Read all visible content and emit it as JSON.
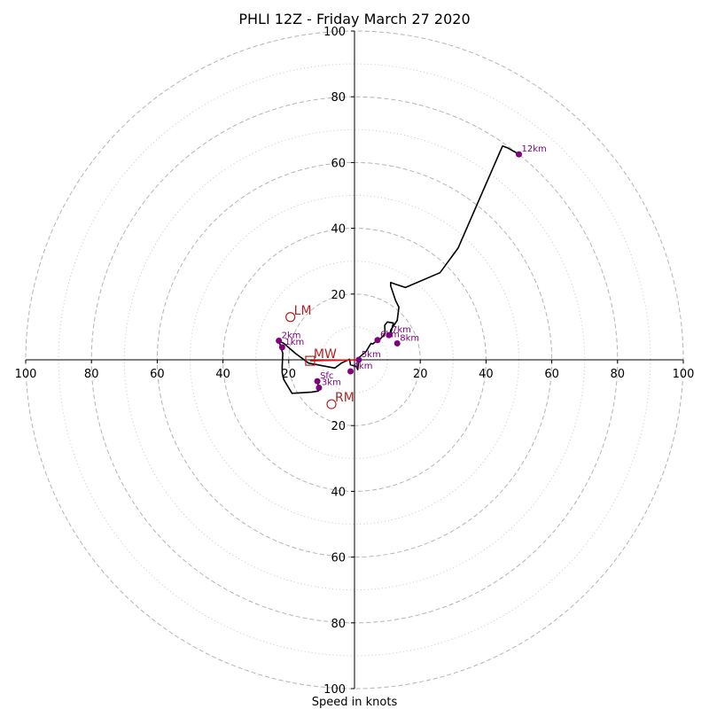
{
  "chart_data": {
    "type": "scatter",
    "title": "PHLI 12Z - Friday March 27 2020",
    "xlabel": "Speed in knots",
    "ylabel": "",
    "xlim": [
      -100,
      100
    ],
    "ylim": [
      -100,
      100
    ],
    "grid": true,
    "rings_major": [
      20,
      40,
      60,
      80,
      100
    ],
    "rings_minor": [
      10,
      30,
      50,
      70,
      90
    ],
    "x_tick_labels": [
      {
        "value": -100,
        "label": "100"
      },
      {
        "value": -80,
        "label": "80"
      },
      {
        "value": -60,
        "label": "60"
      },
      {
        "value": -40,
        "label": "40"
      },
      {
        "value": -20,
        "label": "20"
      },
      {
        "value": 20,
        "label": "20"
      },
      {
        "value": 40,
        "label": "40"
      },
      {
        "value": 60,
        "label": "60"
      },
      {
        "value": 80,
        "label": "80"
      },
      {
        "value": 100,
        "label": "100"
      }
    ],
    "y_tick_labels": [
      {
        "value": 100,
        "label": "100"
      },
      {
        "value": 80,
        "label": "80"
      },
      {
        "value": 60,
        "label": "60"
      },
      {
        "value": 40,
        "label": "40"
      },
      {
        "value": 20,
        "label": "20"
      },
      {
        "value": -20,
        "label": "20"
      },
      {
        "value": -40,
        "label": "40"
      },
      {
        "value": -60,
        "label": "60"
      },
      {
        "value": -80,
        "label": "80"
      },
      {
        "value": -100,
        "label": "100"
      }
    ],
    "hodograph": {
      "color": "#000000",
      "points": [
        [
          -11.3,
          -6.5
        ],
        [
          -11.2,
          -7.0
        ],
        [
          -10.8,
          -8.5
        ],
        [
          -11.0,
          -9.5
        ],
        [
          -13.0,
          -9.8
        ],
        [
          -19.0,
          -10.2
        ],
        [
          -21.5,
          -6.0
        ],
        [
          -22.0,
          -4.0
        ],
        [
          -22.0,
          -2.0
        ],
        [
          -21.8,
          2.0
        ],
        [
          -23.0,
          5.8
        ],
        [
          -21.5,
          5.0
        ],
        [
          -18.0,
          2.0
        ],
        [
          -14.0,
          -1.0
        ],
        [
          -6.0,
          -2.5
        ],
        [
          -4.0,
          -1.0
        ],
        [
          -1.5,
          0.2
        ],
        [
          -1.2,
          -1.5
        ],
        [
          0.5,
          -2.0
        ],
        [
          1.0,
          -3.0
        ],
        [
          1.3,
          0.0
        ],
        [
          1.5,
          0.8
        ],
        [
          3.5,
          2.5
        ],
        [
          5.0,
          5.0
        ],
        [
          5.5,
          4.8
        ],
        [
          7.0,
          6.0
        ],
        [
          8.0,
          6.5
        ],
        [
          9.3,
          8.0
        ],
        [
          9.2,
          10.5
        ],
        [
          10.0,
          11.5
        ],
        [
          11.8,
          11.2
        ],
        [
          11.5,
          10.0
        ],
        [
          10.8,
          7.2
        ],
        [
          11.0,
          9.0
        ],
        [
          13.0,
          12.0
        ],
        [
          13.5,
          16.0
        ],
        [
          12.5,
          18.0
        ],
        [
          11.0,
          22.5
        ],
        [
          11.0,
          23.5
        ],
        [
          12.5,
          23.0
        ],
        [
          15.5,
          22.0
        ],
        [
          26.0,
          26.5
        ],
        [
          31.5,
          34.0
        ],
        [
          45.0,
          65.0
        ],
        [
          46.5,
          64.5
        ],
        [
          50.0,
          62.5
        ]
      ]
    },
    "height_markers": {
      "color": "#800080",
      "points": [
        {
          "label": "Sfc",
          "x": -11.3,
          "y": -6.5
        },
        {
          "label": "1km",
          "x": -22.0,
          "y": 3.8
        },
        {
          "label": "2km",
          "x": -23.0,
          "y": 5.8
        },
        {
          "label": "3km",
          "x": -10.8,
          "y": -8.5
        },
        {
          "label": "4km",
          "x": -1.2,
          "y": -3.5
        },
        {
          "label": "5km",
          "x": 1.3,
          "y": 0.0
        },
        {
          "label": "6km",
          "x": 7.0,
          "y": 6.0
        },
        {
          "label": "7km",
          "x": 10.5,
          "y": 7.5
        },
        {
          "label": "8km",
          "x": 13.0,
          "y": 5.0
        },
        {
          "label": "12km",
          "x": 50.0,
          "y": 62.5
        }
      ]
    },
    "storm_motion": {
      "color": "#b22222",
      "points": [
        {
          "label": "LM",
          "x": -19.5,
          "y": 13.0,
          "marker": "circle"
        },
        {
          "label": "RM",
          "x": -7.0,
          "y": -13.5,
          "marker": "circle"
        },
        {
          "label": "MW",
          "x": -13.5,
          "y": -0.3,
          "marker": "square"
        }
      ],
      "shear_vector": {
        "from": [
          -13.5,
          -0.3
        ],
        "to": [
          1.3,
          0.0
        ],
        "color": "#ff0000"
      }
    }
  }
}
